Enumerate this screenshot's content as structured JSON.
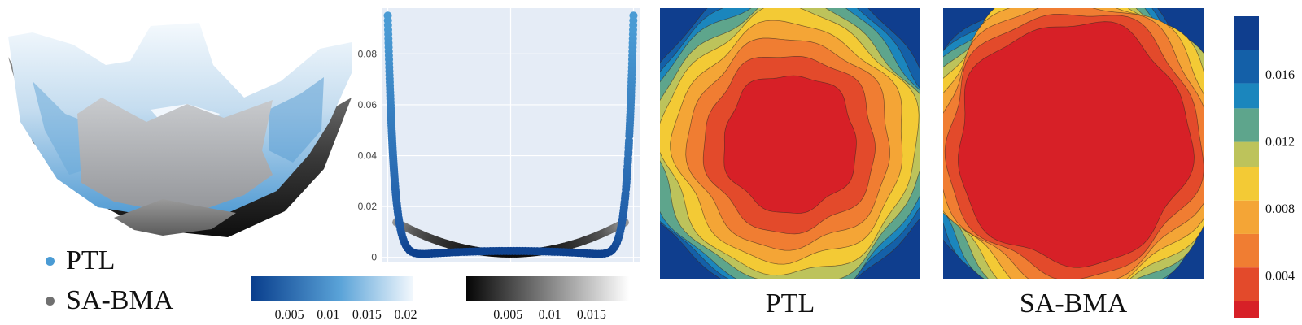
{
  "legend": {
    "items": [
      {
        "label": "PTL",
        "color": "#4a9bd4"
      },
      {
        "label": "SA-BMA",
        "color": "#707070"
      }
    ]
  },
  "chart_data": [
    {
      "type": "surface3d",
      "series": [
        {
          "name": "PTL",
          "colormap": "blues-to-white"
        },
        {
          "name": "SA-BMA",
          "colormap": "black-to-white"
        }
      ]
    },
    {
      "type": "scatter",
      "background": "#e5ecf6",
      "grid": true,
      "ylim": [
        -0.002,
        0.098
      ],
      "ytick_labels": [
        "0",
        "0.02",
        "0.04",
        "0.06",
        "0.08"
      ],
      "ytick_values": [
        0,
        0.02,
        0.04,
        0.06,
        0.08
      ],
      "xlim": [
        -1.05,
        1.05
      ],
      "series": [
        {
          "name": "PTL",
          "colormap": "blues",
          "model": "0.00003 + 0.0025*(1-x^2) + 0.095*x^20"
        },
        {
          "name": "SA-BMA",
          "colormap": "greys",
          "model": "0.0015 + 0.0142*x^2"
        }
      ],
      "colorbars": [
        {
          "name": "PTL",
          "colormap": "blues",
          "range": [
            0,
            0.021
          ],
          "tick_labels": [
            "0.005",
            "0.01",
            "0.015",
            "0.02"
          ],
          "tick_values": [
            0.005,
            0.01,
            0.015,
            0.02
          ]
        },
        {
          "name": "SA-BMA",
          "colormap": "greys",
          "range": [
            0,
            0.0195
          ],
          "tick_labels": [
            "0.005",
            "0.01",
            "0.015"
          ],
          "tick_values": [
            0.005,
            0.01,
            0.015
          ]
        }
      ]
    },
    {
      "type": "heatmap",
      "style": "contour",
      "title": "PTL",
      "center_value": 0.002,
      "corner_value": 0.0195,
      "core_radius": 0.45
    },
    {
      "type": "heatmap",
      "style": "contour",
      "title": "SA-BMA",
      "center_value": 0.001,
      "corner_value": 0.0175,
      "core_radius": 0.8
    }
  ],
  "colorbar_right": {
    "range": [
      0.0015,
      0.0195
    ],
    "tick_labels": [
      "0.004",
      "0.008",
      "0.012",
      "0.016"
    ],
    "tick_values": [
      0.004,
      0.008,
      0.012,
      0.016
    ],
    "bands": [
      {
        "from": 0.0015,
        "to": 0.0025,
        "color": "#d72027"
      },
      {
        "from": 0.0025,
        "to": 0.0045,
        "color": "#e34a2b"
      },
      {
        "from": 0.0045,
        "to": 0.0065,
        "color": "#f07d32"
      },
      {
        "from": 0.0065,
        "to": 0.0085,
        "color": "#f4a536"
      },
      {
        "from": 0.0085,
        "to": 0.0105,
        "color": "#f3ca35"
      },
      {
        "from": 0.0105,
        "to": 0.012,
        "color": "#bdc35b"
      },
      {
        "from": 0.012,
        "to": 0.014,
        "color": "#5ea58c"
      },
      {
        "from": 0.014,
        "to": 0.0155,
        "color": "#1b86bd"
      },
      {
        "from": 0.0155,
        "to": 0.0175,
        "color": "#1460a8"
      },
      {
        "from": 0.0175,
        "to": 0.0195,
        "color": "#0f3e8e"
      }
    ]
  }
}
